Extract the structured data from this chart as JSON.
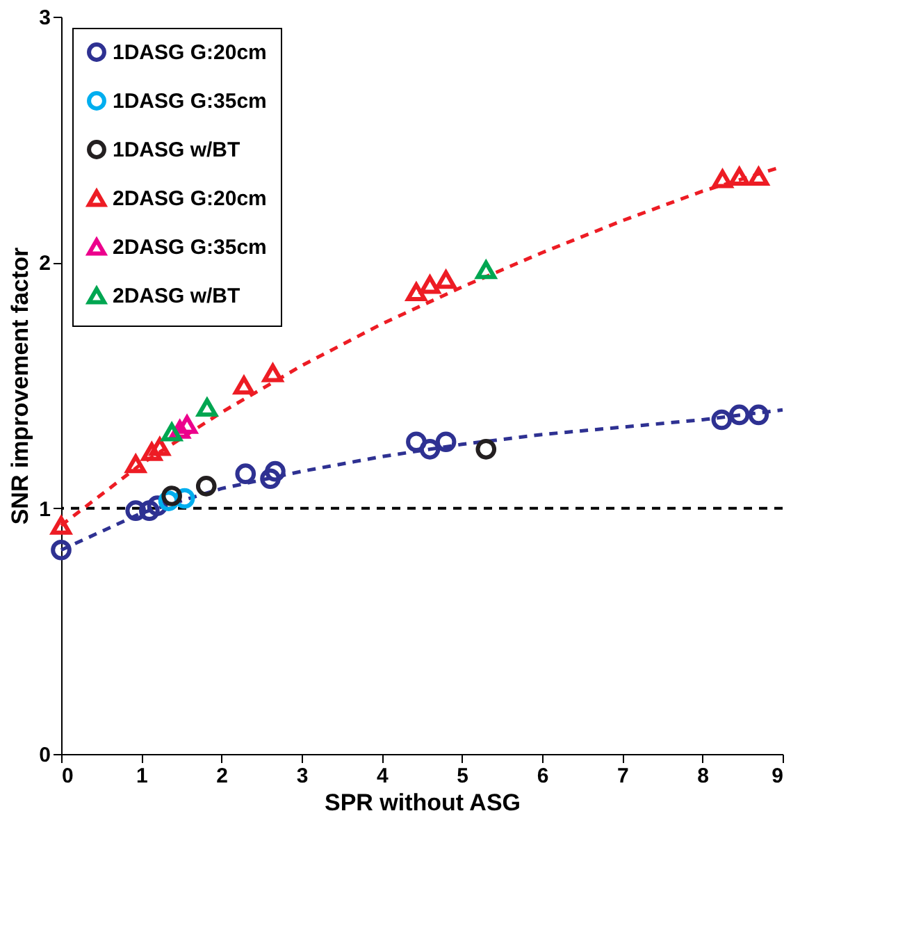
{
  "chart_data": {
    "type": "scatter",
    "xlabel": "SPR without ASG",
    "ylabel": "SNR improvement factor",
    "xlim": [
      0,
      9
    ],
    "ylim": [
      0,
      3
    ],
    "xticks": [
      0,
      1,
      2,
      3,
      4,
      5,
      6,
      7,
      8,
      9
    ],
    "yticks": [
      0,
      1,
      2,
      3
    ],
    "grid": false,
    "legend": "top left",
    "series": [
      {
        "name": "1DASG G:20cm",
        "color": "#2e3192",
        "marker": "circle",
        "x": [
          0,
          0.93,
          1.1,
          1.2,
          2.3,
          2.61,
          2.67,
          4.43,
          4.6,
          4.8,
          8.24,
          8.46,
          8.7
        ],
        "values": [
          0.83,
          0.99,
          0.99,
          1.01,
          1.14,
          1.12,
          1.15,
          1.27,
          1.24,
          1.27,
          1.36,
          1.38,
          1.38
        ]
      },
      {
        "name": "1DASG G:35cm",
        "color": "#00aeef",
        "marker": "circle",
        "x": [
          1.34,
          1.54
        ],
        "values": [
          1.03,
          1.04
        ]
      },
      {
        "name": "1DASG w/BT",
        "color": "#231f20",
        "marker": "circle",
        "x": [
          1.38,
          1.81,
          5.3
        ],
        "values": [
          1.05,
          1.09,
          1.24
        ]
      },
      {
        "name": "2DASG G:20cm",
        "color": "#ed1c24",
        "marker": "triangle",
        "x": [
          0,
          0.93,
          1.13,
          1.23,
          2.28,
          2.64,
          4.43,
          4.6,
          4.8,
          8.25,
          8.46,
          8.7
        ],
        "values": [
          0.93,
          1.18,
          1.23,
          1.25,
          1.5,
          1.55,
          1.88,
          1.91,
          1.93,
          2.34,
          2.35,
          2.35
        ]
      },
      {
        "name": "2DASG G:35cm",
        "color": "#ec008c",
        "marker": "triangle",
        "x": [
          1.48,
          1.57
        ],
        "values": [
          1.32,
          1.34
        ]
      },
      {
        "name": "2DASG w/BT",
        "color": "#00a651",
        "marker": "triangle",
        "x": [
          1.38,
          1.82,
          5.3
        ],
        "values": [
          1.31,
          1.41,
          1.97
        ]
      },
      {
        "type": "line",
        "color": "#2e3192",
        "line_style": "dashed",
        "x": [
          0,
          1,
          2,
          3,
          4,
          5,
          6,
          7,
          8,
          9
        ],
        "values": [
          0.83,
          0.98,
          1.08,
          1.15,
          1.21,
          1.26,
          1.3,
          1.33,
          1.36,
          1.4
        ]
      },
      {
        "type": "line",
        "color": "#ed1c24",
        "line_style": "dashed",
        "x": [
          0,
          1,
          2,
          3,
          4,
          5,
          6,
          7,
          8,
          9
        ],
        "values": [
          0.93,
          1.18,
          1.39,
          1.58,
          1.75,
          1.9,
          2.04,
          2.17,
          2.29,
          2.39
        ]
      }
    ],
    "ref_lines": [
      {
        "axis": "y",
        "value": 1,
        "color": "#000000",
        "line_style": "dashed"
      }
    ]
  }
}
